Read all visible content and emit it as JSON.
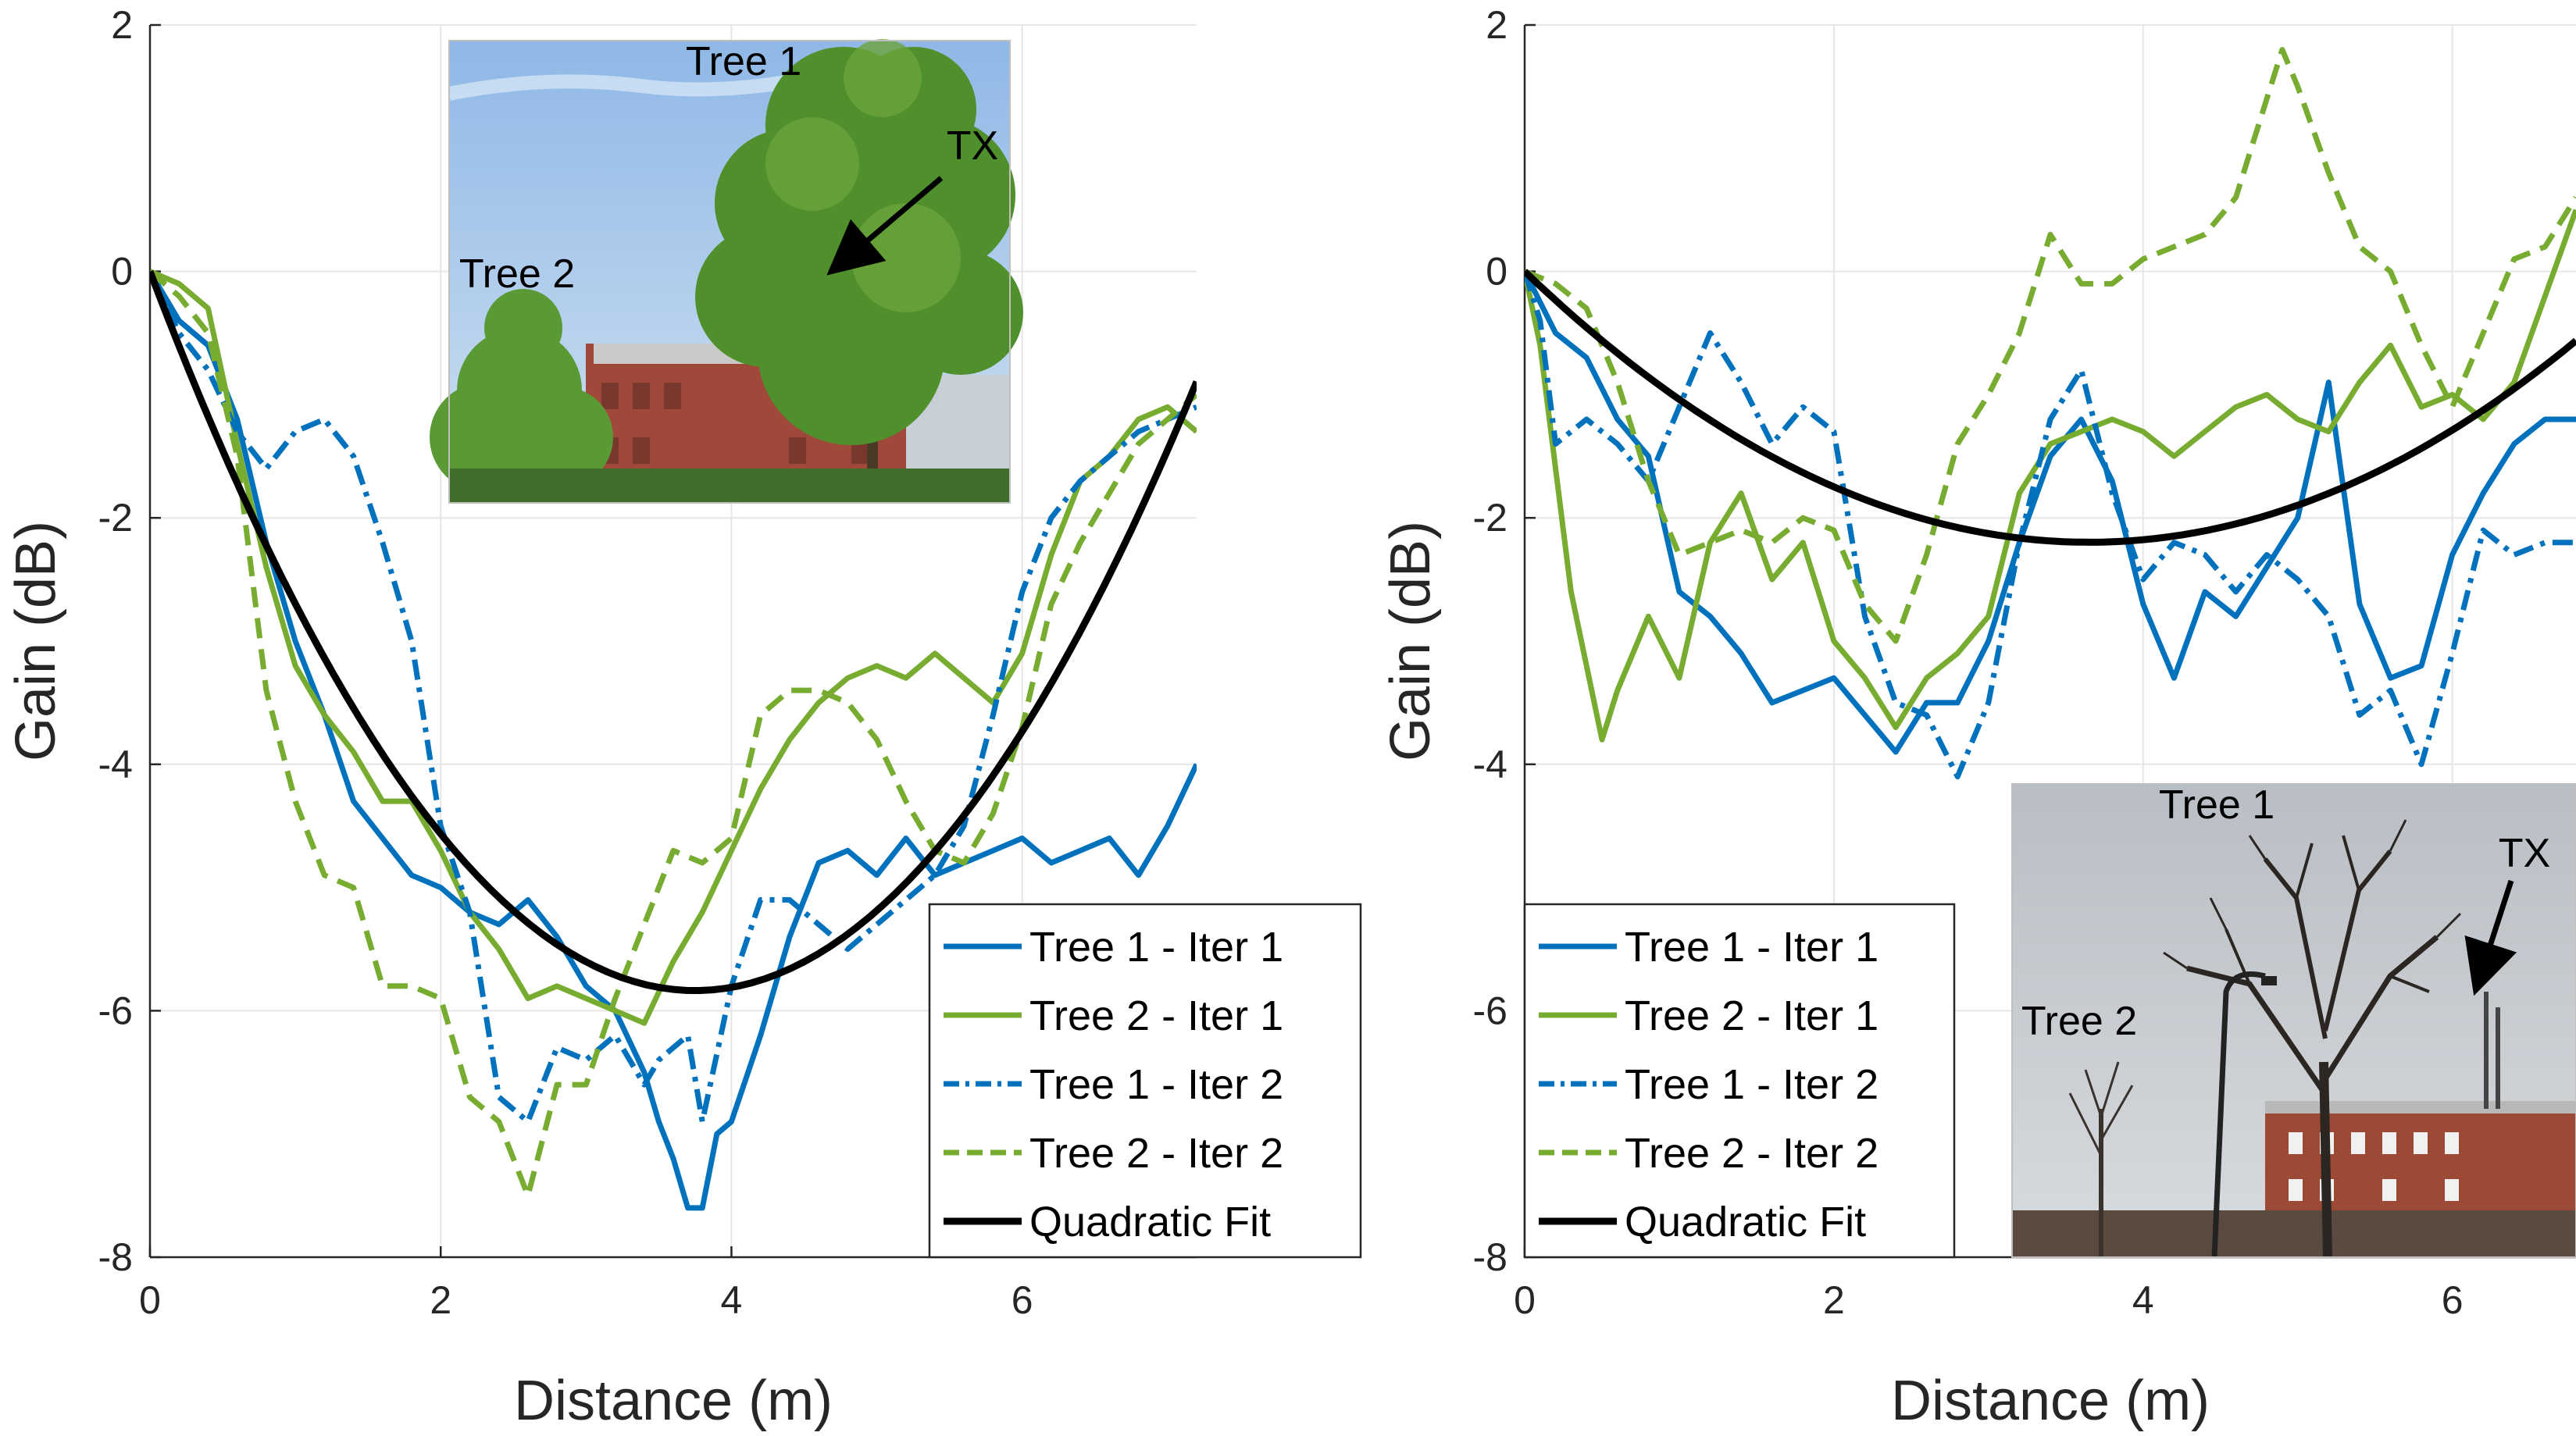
{
  "chart_data": [
    {
      "type": "line",
      "panel": "left",
      "xlabel": "Distance (m)",
      "ylabel": "Gain (dB)",
      "xlim": [
        0,
        7.2
      ],
      "ylim": [
        -8,
        2
      ],
      "xticks": [
        0,
        2,
        4,
        6
      ],
      "yticks": [
        -8,
        -6,
        -4,
        -2,
        0,
        2
      ],
      "legend_position": "bottom-right",
      "legend": [
        "Tree 1 - Iter 1",
        "Tree 2 - Iter 1",
        "Tree 1 - Iter 2",
        "Tree 2 - Iter 2",
        "Quadratic Fit"
      ],
      "inset": {
        "labels": [
          "Tree 1",
          "TX",
          "Tree 2"
        ],
        "position": "top-center",
        "scene": "summer"
      },
      "series": [
        {
          "name": "Tree 1 - Iter 1",
          "color": "#0072BD",
          "dash": "solid",
          "x": [
            0,
            0.2,
            0.4,
            0.6,
            0.8,
            1.0,
            1.2,
            1.4,
            1.6,
            1.8,
            2.0,
            2.2,
            2.4,
            2.6,
            2.8,
            3.0,
            3.2,
            3.4,
            3.5,
            3.6,
            3.7,
            3.8,
            3.9,
            4.0,
            4.2,
            4.4,
            4.6,
            4.8,
            5.0,
            5.2,
            5.4,
            5.6,
            5.8,
            6.0,
            6.2,
            6.4,
            6.6,
            6.8,
            7.0,
            7.2
          ],
          "y": [
            0,
            -0.4,
            -0.6,
            -1.2,
            -2.2,
            -3.0,
            -3.6,
            -4.3,
            -4.6,
            -4.9,
            -5.0,
            -5.2,
            -5.3,
            -5.1,
            -5.4,
            -5.8,
            -6.0,
            -6.5,
            -6.9,
            -7.2,
            -7.6,
            -7.6,
            -7.0,
            -6.9,
            -6.2,
            -5.4,
            -4.8,
            -4.7,
            -4.9,
            -4.6,
            -4.9,
            -4.8,
            -4.7,
            -4.6,
            -4.8,
            -4.7,
            -4.6,
            -4.9,
            -4.5,
            -4.0
          ]
        },
        {
          "name": "Tree 2 - Iter 1",
          "color": "#77AC30",
          "dash": "solid",
          "x": [
            0,
            0.2,
            0.4,
            0.6,
            0.8,
            1.0,
            1.2,
            1.4,
            1.6,
            1.8,
            2.0,
            2.2,
            2.4,
            2.6,
            2.8,
            3.0,
            3.2,
            3.4,
            3.6,
            3.8,
            4.0,
            4.2,
            4.4,
            4.6,
            4.8,
            5.0,
            5.2,
            5.4,
            5.6,
            5.8,
            6.0,
            6.2,
            6.4,
            6.6,
            6.8,
            7.0,
            7.2
          ],
          "y": [
            0,
            -0.1,
            -0.3,
            -1.4,
            -2.4,
            -3.2,
            -3.6,
            -3.9,
            -4.3,
            -4.3,
            -4.7,
            -5.2,
            -5.5,
            -5.9,
            -5.8,
            -5.9,
            -6.0,
            -6.1,
            -5.6,
            -5.2,
            -4.7,
            -4.2,
            -3.8,
            -3.5,
            -3.3,
            -3.2,
            -3.3,
            -3.1,
            -3.3,
            -3.5,
            -3.1,
            -2.3,
            -1.7,
            -1.5,
            -1.2,
            -1.1,
            -1.3
          ]
        },
        {
          "name": "Tree 1 - Iter 2",
          "color": "#0072BD",
          "dash": "dashdot",
          "x": [
            0,
            0.2,
            0.4,
            0.6,
            0.8,
            1.0,
            1.2,
            1.4,
            1.6,
            1.8,
            2.0,
            2.2,
            2.4,
            2.6,
            2.8,
            3.0,
            3.2,
            3.4,
            3.5,
            3.6,
            3.7,
            3.8,
            4.0,
            4.2,
            4.4,
            4.6,
            4.8,
            5.0,
            5.2,
            5.4,
            5.6,
            5.8,
            6.0,
            6.2,
            6.4,
            6.6,
            6.8,
            7.0,
            7.2
          ],
          "y": [
            0,
            -0.5,
            -0.8,
            -1.3,
            -1.6,
            -1.3,
            -1.2,
            -1.5,
            -2.2,
            -3.0,
            -4.5,
            -5.2,
            -6.7,
            -6.9,
            -6.3,
            -6.4,
            -6.2,
            -6.6,
            -6.4,
            -6.3,
            -6.2,
            -6.9,
            -5.8,
            -5.1,
            -5.1,
            -5.3,
            -5.5,
            -5.3,
            -5.1,
            -4.9,
            -4.5,
            -3.6,
            -2.6,
            -2.0,
            -1.7,
            -1.5,
            -1.3,
            -1.2,
            -1.1
          ]
        },
        {
          "name": "Tree 2 - Iter 2",
          "color": "#77AC30",
          "dash": "dash",
          "x": [
            0,
            0.2,
            0.4,
            0.6,
            0.8,
            1.0,
            1.2,
            1.4,
            1.6,
            1.8,
            2.0,
            2.2,
            2.4,
            2.6,
            2.8,
            3.0,
            3.2,
            3.4,
            3.6,
            3.8,
            4.0,
            4.2,
            4.4,
            4.6,
            4.8,
            5.0,
            5.2,
            5.4,
            5.6,
            5.8,
            6.0,
            6.2,
            6.4,
            6.6,
            6.8,
            7.0,
            7.2
          ],
          "y": [
            0,
            -0.2,
            -0.5,
            -1.5,
            -3.4,
            -4.3,
            -4.9,
            -5.0,
            -5.8,
            -5.8,
            -5.9,
            -6.7,
            -6.9,
            -7.5,
            -6.6,
            -6.6,
            -5.9,
            -5.3,
            -4.7,
            -4.8,
            -4.6,
            -3.6,
            -3.4,
            -3.4,
            -3.5,
            -3.8,
            -4.3,
            -4.7,
            -4.8,
            -4.4,
            -3.7,
            -2.7,
            -2.2,
            -1.8,
            -1.4,
            -1.2,
            -1.0
          ]
        },
        {
          "name": "Quadratic Fit",
          "color": "#000000",
          "dash": "solid",
          "quadratic": {
            "a": 0.4151,
            "b": -3.113,
            "c": 0
          },
          "x_range": [
            0,
            7.2
          ]
        }
      ]
    },
    {
      "type": "line",
      "panel": "right",
      "xlabel": "Distance (m)",
      "ylabel": "Gain (dB)",
      "xlim": [
        0,
        6.8
      ],
      "ylim": [
        -8,
        2
      ],
      "xticks": [
        0,
        2,
        4,
        6
      ],
      "yticks": [
        -8,
        -6,
        -4,
        -2,
        0,
        2
      ],
      "legend_position": "bottom-left",
      "legend": [
        "Tree 1 - Iter 1",
        "Tree 2 - Iter 1",
        "Tree 1 - Iter 2",
        "Tree 2 - Iter 2",
        "Quadratic Fit"
      ],
      "inset": {
        "labels": [
          "Tree 1",
          "TX",
          "Tree 2"
        ],
        "position": "bottom-right",
        "scene": "winter"
      },
      "series": [
        {
          "name": "Tree 1 - Iter 1",
          "color": "#0072BD",
          "dash": "solid",
          "x": [
            0,
            0.2,
            0.4,
            0.6,
            0.8,
            1.0,
            1.2,
            1.4,
            1.6,
            1.8,
            2.0,
            2.2,
            2.4,
            2.6,
            2.8,
            3.0,
            3.2,
            3.4,
            3.6,
            3.8,
            4.0,
            4.2,
            4.4,
            4.6,
            4.8,
            5.0,
            5.2,
            5.4,
            5.6,
            5.8,
            6.0,
            6.2,
            6.4,
            6.6,
            6.8
          ],
          "y": [
            0,
            -0.5,
            -0.7,
            -1.2,
            -1.5,
            -2.6,
            -2.8,
            -3.1,
            -3.5,
            -3.4,
            -3.3,
            -3.6,
            -3.9,
            -3.5,
            -3.5,
            -3.0,
            -2.2,
            -1.5,
            -1.2,
            -1.7,
            -2.7,
            -3.3,
            -2.6,
            -2.8,
            -2.4,
            -2.0,
            -0.9,
            -2.7,
            -3.3,
            -3.2,
            -2.3,
            -1.8,
            -1.4,
            -1.2,
            -1.2
          ]
        },
        {
          "name": "Tree 2 - Iter 1",
          "color": "#77AC30",
          "dash": "solid",
          "x": [
            0,
            0.1,
            0.2,
            0.3,
            0.4,
            0.5,
            0.6,
            0.8,
            1.0,
            1.2,
            1.4,
            1.6,
            1.8,
            2.0,
            2.2,
            2.4,
            2.6,
            2.8,
            3.0,
            3.2,
            3.4,
            3.6,
            3.8,
            4.0,
            4.2,
            4.4,
            4.6,
            4.8,
            5.0,
            5.2,
            5.4,
            5.6,
            5.8,
            6.0,
            6.2,
            6.4,
            6.6,
            6.8
          ],
          "y": [
            0,
            -0.6,
            -1.6,
            -2.6,
            -3.2,
            -3.8,
            -3.4,
            -2.8,
            -3.3,
            -2.2,
            -1.8,
            -2.5,
            -2.2,
            -3.0,
            -3.3,
            -3.7,
            -3.3,
            -3.1,
            -2.8,
            -1.8,
            -1.4,
            -1.3,
            -1.2,
            -1.3,
            -1.5,
            -1.3,
            -1.1,
            -1.0,
            -1.2,
            -1.3,
            -0.9,
            -0.6,
            -1.1,
            -1.0,
            -1.2,
            -0.9,
            -0.2,
            0.5
          ]
        },
        {
          "name": "Tree 1 - Iter 2",
          "color": "#0072BD",
          "dash": "dashdot",
          "x": [
            0,
            0.1,
            0.2,
            0.4,
            0.6,
            0.8,
            1.0,
            1.2,
            1.4,
            1.6,
            1.8,
            2.0,
            2.2,
            2.4,
            2.6,
            2.8,
            3.0,
            3.2,
            3.4,
            3.6,
            3.8,
            4.0,
            4.2,
            4.4,
            4.6,
            4.8,
            5.0,
            5.2,
            5.4,
            5.6,
            5.8,
            6.0,
            6.2,
            6.4,
            6.6,
            6.8
          ],
          "y": [
            0,
            -0.4,
            -1.4,
            -1.2,
            -1.4,
            -1.7,
            -1.1,
            -0.5,
            -0.9,
            -1.4,
            -1.1,
            -1.3,
            -2.8,
            -3.5,
            -3.6,
            -4.1,
            -3.5,
            -2.2,
            -1.2,
            -0.8,
            -1.8,
            -2.5,
            -2.2,
            -2.3,
            -2.6,
            -2.3,
            -2.5,
            -2.8,
            -3.6,
            -3.4,
            -4.0,
            -3.1,
            -2.1,
            -2.3,
            -2.2,
            -2.2
          ]
        },
        {
          "name": "Tree 2 - Iter 2",
          "color": "#77AC30",
          "dash": "dash",
          "x": [
            0,
            0.2,
            0.4,
            0.6,
            0.8,
            1.0,
            1.2,
            1.4,
            1.6,
            1.8,
            2.0,
            2.2,
            2.4,
            2.6,
            2.8,
            3.0,
            3.2,
            3.4,
            3.6,
            3.8,
            4.0,
            4.2,
            4.4,
            4.6,
            4.8,
            4.9,
            5.0,
            5.2,
            5.4,
            5.6,
            5.8,
            6.0,
            6.2,
            6.4,
            6.6,
            6.8
          ],
          "y": [
            0,
            -0.1,
            -0.3,
            -0.9,
            -1.7,
            -2.3,
            -2.2,
            -2.1,
            -2.2,
            -2.0,
            -2.1,
            -2.7,
            -3.0,
            -2.3,
            -1.4,
            -1.0,
            -0.5,
            0.3,
            -0.1,
            -0.1,
            0.1,
            0.2,
            0.3,
            0.6,
            1.4,
            1.8,
            1.5,
            0.8,
            0.2,
            0.0,
            -0.6,
            -1.1,
            -0.5,
            0.1,
            0.2,
            0.6
          ]
        },
        {
          "name": "Quadratic Fit",
          "color": "#000000",
          "dash": "solid",
          "quadratic": {
            "a": 0.1649,
            "b": -1.204,
            "c": 0
          },
          "x_range": [
            0,
            6.8
          ]
        }
      ]
    }
  ]
}
